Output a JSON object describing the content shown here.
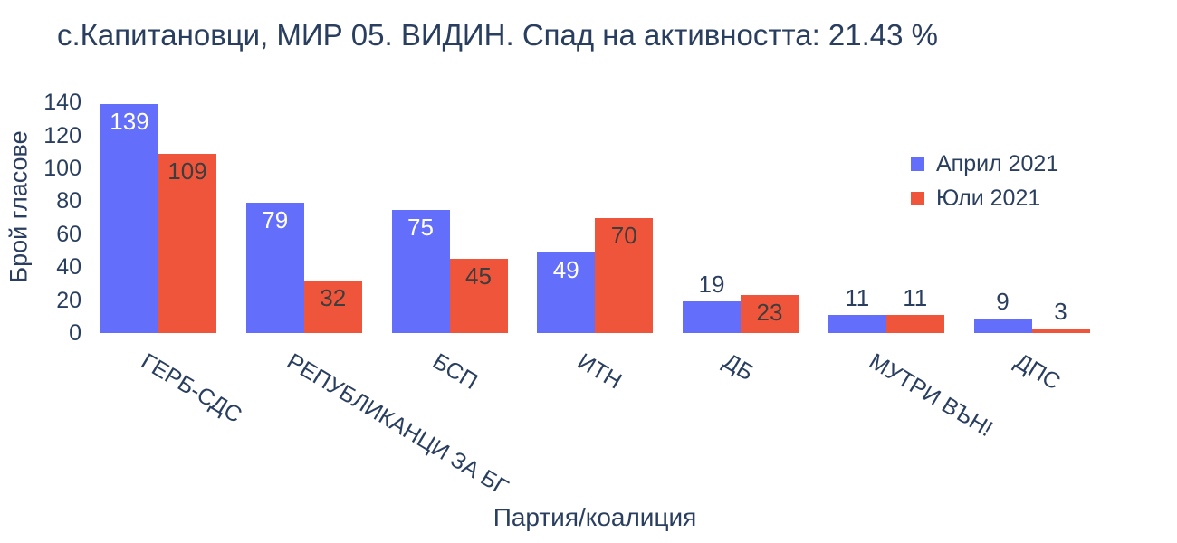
{
  "chart_data": {
    "type": "bar",
    "title": "с.Капитановци, МИР 05. ВИДИН. Спад на активността: 21.43 %",
    "xlabel": "Партия/коалиция",
    "ylabel": "Брой гласове",
    "categories": [
      "ГЕРБ-СДС",
      "РЕПУБЛИКАНЦИ ЗА БГ",
      "БСП",
      "ИТН",
      "ДБ",
      "МУТРИ ВЪН!",
      "ДПС"
    ],
    "series": [
      {
        "name": "Април 2021",
        "color": "#636EFA",
        "inside_text_color": "#ffffff",
        "values": [
          139,
          79,
          75,
          49,
          19,
          11,
          9
        ]
      },
      {
        "name": "Юли 2021",
        "color": "#EF553B",
        "inside_text_color": "#3d3d3d",
        "values": [
          109,
          32,
          45,
          70,
          23,
          11,
          3
        ]
      }
    ],
    "ylim": [
      0,
      140
    ],
    "yticks": [
      0,
      20,
      40,
      60,
      80,
      100,
      120,
      140
    ],
    "grid": false,
    "legend_position": "right-inside",
    "text_color": "#2a3f5f",
    "background_color": "#ffffff"
  }
}
